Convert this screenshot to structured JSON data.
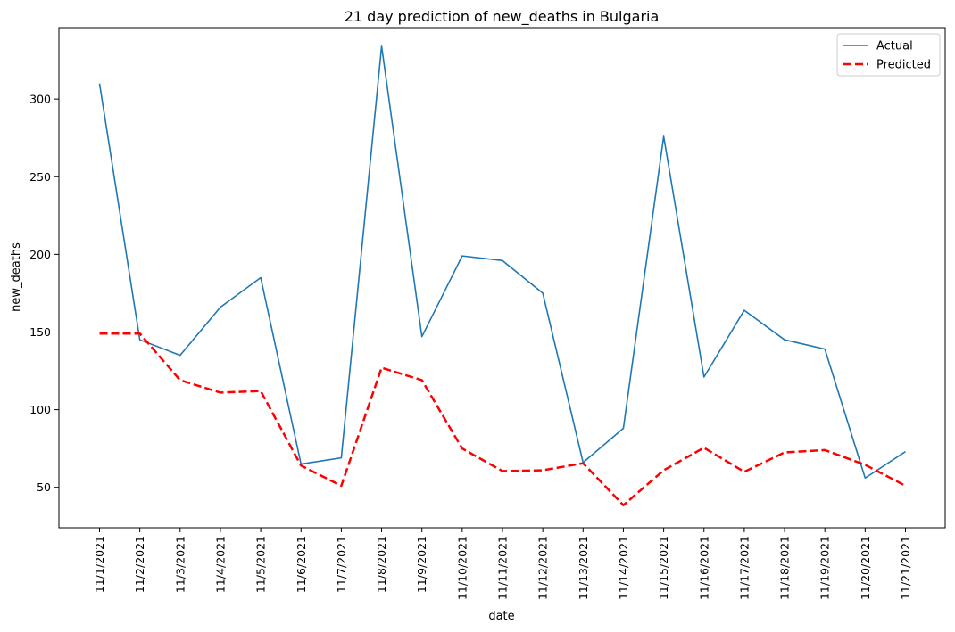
{
  "chart_data": {
    "type": "line",
    "title": "21 day prediction of new_deaths in Bulgaria",
    "xlabel": "date",
    "ylabel": "new_deaths",
    "x": [
      "11/1/2021",
      "11/2/2021",
      "11/3/2021",
      "11/4/2021",
      "11/5/2021",
      "11/6/2021",
      "11/7/2021",
      "11/8/2021",
      "11/9/2021",
      "11/10/2021",
      "11/11/2021",
      "11/12/2021",
      "11/13/2021",
      "11/14/2021",
      "11/15/2021",
      "11/16/2021",
      "11/17/2021",
      "11/18/2021",
      "11/19/2021",
      "11/20/2021",
      "11/21/2021"
    ],
    "ylim": [
      24,
      346
    ],
    "yticks": [
      50,
      100,
      150,
      200,
      250,
      300
    ],
    "grid": false,
    "legend_position": "top-right",
    "series": [
      {
        "name": "Actual",
        "color": "#1f77b4",
        "style": "solid",
        "values": [
          310,
          145,
          135,
          166,
          185,
          65,
          69,
          334,
          147,
          199,
          196,
          175,
          66,
          88,
          276,
          121,
          164,
          145,
          139,
          56,
          73
        ]
      },
      {
        "name": "Predicted",
        "color": "#ff0000",
        "style": "dashed",
        "values": [
          149,
          149,
          119,
          111,
          112,
          64,
          51,
          127,
          119,
          75,
          60.5,
          61,
          65.5,
          38.5,
          61,
          75.5,
          60,
          72.5,
          74,
          64.5,
          51
        ]
      }
    ]
  }
}
